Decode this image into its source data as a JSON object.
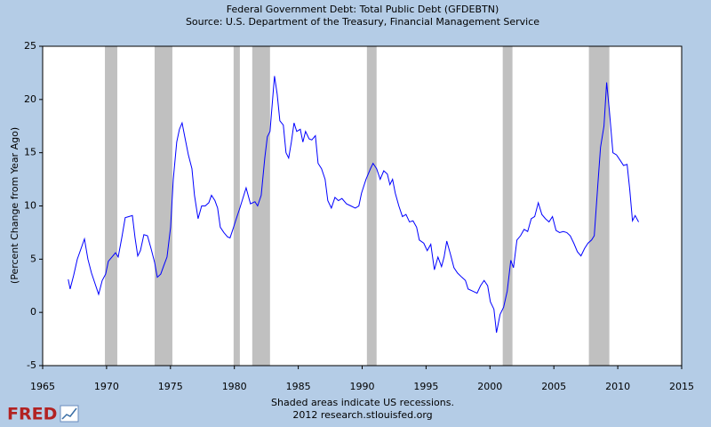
{
  "chart_data": {
    "type": "line",
    "title": "Federal Government Debt: Total Public Debt (GFDEBTN)",
    "subtitle": "Source: U.S. Department of the Treasury, Financial Management Service",
    "ylabel": "(Percent Change from Year Ago)",
    "note": "Shaded areas indicate US recessions.",
    "credit": "2012 research.stlouisfed.org",
    "logo": "FRED",
    "xlim": [
      1965,
      2015
    ],
    "xticks": [
      1965,
      1970,
      1975,
      1980,
      1985,
      1990,
      1995,
      2000,
      2005,
      2010,
      2015
    ],
    "ylim": [
      -5,
      25
    ],
    "yticks": [
      -5,
      0,
      5,
      10,
      15,
      20,
      25
    ],
    "recessions": [
      [
        1969.87,
        1970.84
      ],
      [
        1973.76,
        1975.15
      ],
      [
        1979.94,
        1980.43
      ],
      [
        1981.4,
        1982.79
      ],
      [
        1990.37,
        1991.13
      ],
      [
        2001.0,
        2001.76
      ],
      [
        2007.74,
        2009.34
      ]
    ],
    "recession_color": "#c0c0c0",
    "series": [
      {
        "color": "#0000ff",
        "x": [
          1967.0,
          1967.15,
          1967.43,
          1967.71,
          1968.27,
          1968.54,
          1968.82,
          1969.1,
          1969.38,
          1969.66,
          1969.93,
          1970.14,
          1970.42,
          1970.7,
          1970.91,
          1971.19,
          1971.46,
          1971.74,
          1972.02,
          1972.23,
          1972.44,
          1972.65,
          1972.92,
          1973.2,
          1973.48,
          1973.76,
          1973.97,
          1974.24,
          1974.45,
          1974.73,
          1975.01,
          1975.22,
          1975.49,
          1975.7,
          1975.91,
          1976.12,
          1976.4,
          1976.68,
          1976.88,
          1977.16,
          1977.44,
          1977.72,
          1978.0,
          1978.21,
          1978.48,
          1978.69,
          1978.9,
          1979.18,
          1979.46,
          1979.66,
          1979.94,
          1980.15,
          1980.43,
          1980.92,
          1981.26,
          1981.61,
          1981.82,
          1982.1,
          1982.38,
          1982.58,
          1982.79,
          1983.14,
          1983.35,
          1983.56,
          1983.83,
          1984.04,
          1984.25,
          1984.46,
          1984.67,
          1984.88,
          1985.16,
          1985.36,
          1985.57,
          1985.85,
          1986.06,
          1986.34,
          1986.55,
          1986.82,
          1987.1,
          1987.31,
          1987.59,
          1987.87,
          1988.14,
          1988.42,
          1988.77,
          1989.12,
          1989.46,
          1989.74,
          1989.95,
          1990.3,
          1990.65,
          1990.85,
          1991.13,
          1991.41,
          1991.69,
          1991.97,
          1992.17,
          1992.38,
          1992.59,
          1992.87,
          1993.15,
          1993.43,
          1993.7,
          1993.98,
          1994.26,
          1994.47,
          1994.82,
          1995.09,
          1995.37,
          1995.65,
          1995.93,
          1996.21,
          1996.41,
          1996.62,
          1996.9,
          1997.18,
          1997.46,
          1997.8,
          1998.08,
          1998.29,
          1998.64,
          1998.99,
          1999.26,
          1999.54,
          1999.82,
          2000.03,
          2000.31,
          2000.51,
          2000.79,
          2001.07,
          2001.35,
          2001.63,
          2001.84,
          2002.11,
          2002.39,
          2002.67,
          2002.95,
          2003.23,
          2003.5,
          2003.78,
          2004.06,
          2004.34,
          2004.62,
          2004.89,
          2005.17,
          2005.45,
          2005.73,
          2006.01,
          2006.28,
          2006.56,
          2006.84,
          2007.12,
          2007.4,
          2007.67,
          2007.95,
          2008.16,
          2008.44,
          2008.65,
          2008.92,
          2009.13,
          2009.34,
          2009.62,
          2009.9,
          2010.18,
          2010.45,
          2010.73,
          2010.94,
          2011.15,
          2011.36,
          2011.63
        ],
        "values": [
          3.1,
          2.2,
          3.5,
          5.0,
          6.9,
          5.0,
          3.7,
          2.7,
          1.7,
          3.0,
          3.6,
          4.8,
          5.2,
          5.6,
          5.2,
          7.0,
          8.9,
          9.0,
          9.1,
          7.0,
          5.3,
          5.8,
          7.3,
          7.2,
          6.0,
          4.7,
          3.3,
          3.6,
          4.3,
          5.2,
          8.0,
          12.5,
          16.0,
          17.2,
          17.8,
          16.5,
          14.8,
          13.5,
          11.0,
          8.8,
          10.0,
          10.0,
          10.3,
          11.0,
          10.5,
          9.8,
          8.0,
          7.5,
          7.1,
          7.0,
          8.0,
          8.8,
          9.8,
          11.7,
          10.2,
          10.4,
          10.0,
          11.0,
          14.5,
          16.5,
          17.0,
          22.2,
          20.5,
          18.0,
          17.6,
          15.0,
          14.5,
          16.0,
          17.8,
          17.0,
          17.2,
          16.0,
          17.0,
          16.3,
          16.2,
          16.6,
          14.0,
          13.5,
          12.5,
          10.5,
          9.8,
          10.8,
          10.5,
          10.7,
          10.2,
          10.0,
          9.8,
          10.0,
          11.2,
          12.5,
          13.5,
          14.0,
          13.5,
          12.5,
          13.3,
          13.0,
          12.0,
          12.5,
          11.2,
          10.0,
          9.0,
          9.2,
          8.5,
          8.6,
          8.0,
          6.8,
          6.5,
          5.8,
          6.4,
          4.0,
          5.2,
          4.3,
          5.2,
          6.7,
          5.5,
          4.2,
          3.7,
          3.3,
          3.0,
          2.2,
          2.0,
          1.8,
          2.5,
          3.0,
          2.5,
          1.0,
          0.3,
          -1.9,
          -0.2,
          0.5,
          2.0,
          4.9,
          4.2,
          6.8,
          7.2,
          7.8,
          7.6,
          8.8,
          9.0,
          10.3,
          9.2,
          8.8,
          8.5,
          9.0,
          7.7,
          7.5,
          7.6,
          7.5,
          7.2,
          6.5,
          5.7,
          5.3,
          6.0,
          6.5,
          6.8,
          7.2,
          12.0,
          15.5,
          17.5,
          21.6,
          19.0,
          15.0,
          14.8,
          14.3,
          13.8,
          13.9,
          11.5,
          8.6,
          9.1,
          8.5
        ]
      }
    ]
  }
}
